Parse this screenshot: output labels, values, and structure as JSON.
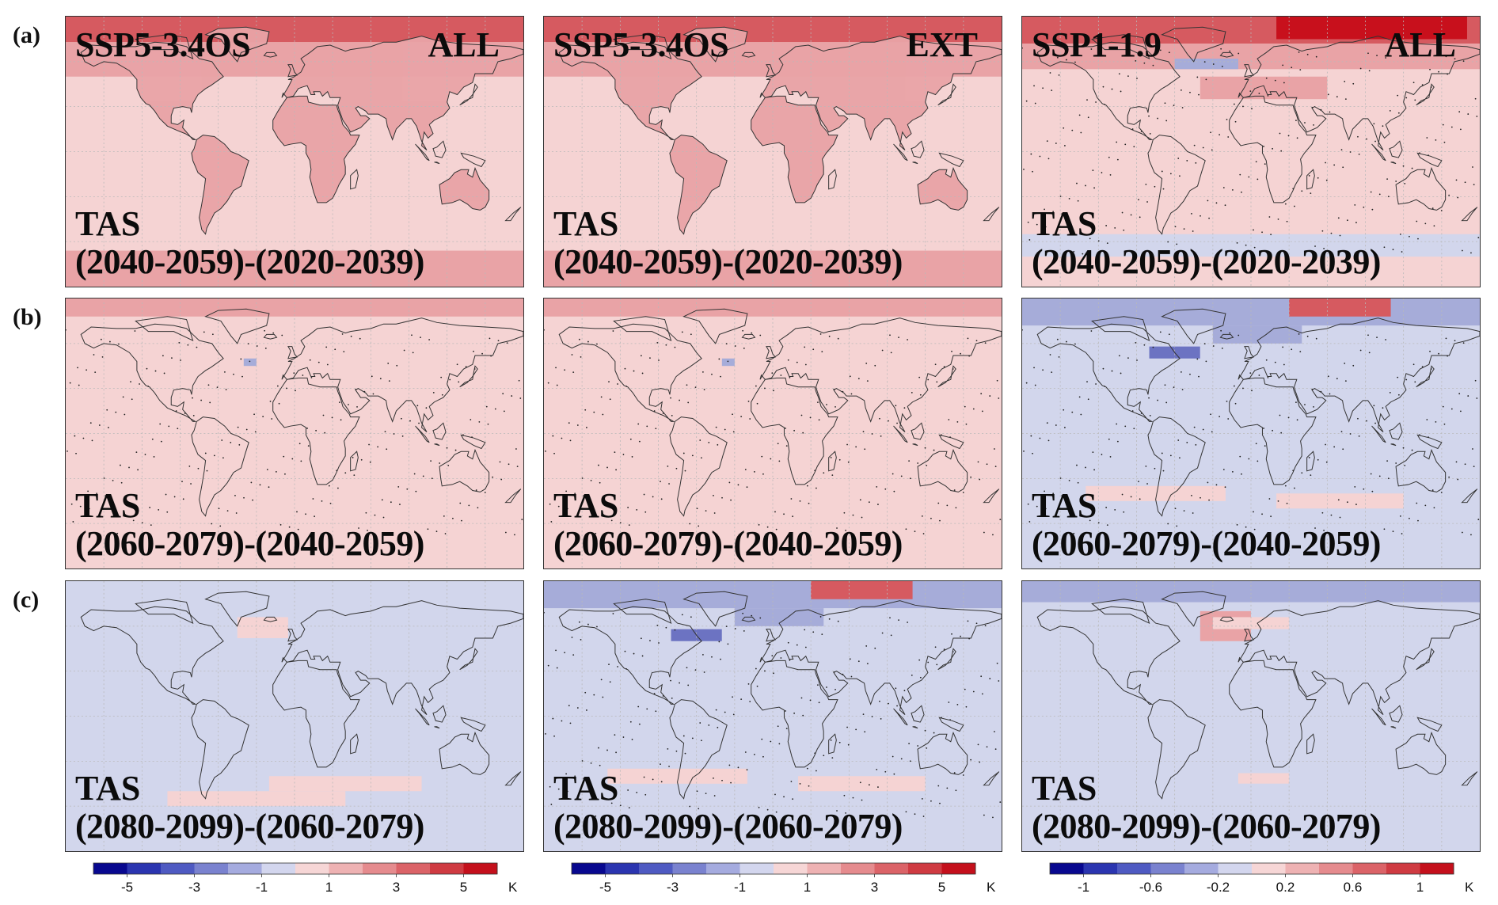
{
  "row_labels": [
    "(a)",
    "(b)",
    "(c)"
  ],
  "colors": {
    "warm_light": "#f5d3d3",
    "warm_mid": "#e9a3a6",
    "warm_strong": "#d65a60",
    "warm_max": "#c8101c",
    "cool_light": "#d2d6ec",
    "cool_mid": "#a6acd9",
    "cool_strong": "#6c73c2",
    "coast": "#333333"
  },
  "panels": [
    {
      "row": "a",
      "col": 1,
      "scenario": "SSP5-3.4OS",
      "group": "ALL",
      "variable": "TAS",
      "period": "(2040-2059)-(2020-2039)",
      "base_tone": "warm_light",
      "pattern": "warm-strong",
      "stipple": false
    },
    {
      "row": "a",
      "col": 2,
      "scenario": "SSP5-3.4OS",
      "group": "EXT",
      "variable": "TAS",
      "period": "(2040-2059)-(2020-2039)",
      "base_tone": "warm_light",
      "pattern": "warm-strong",
      "stipple": false
    },
    {
      "row": "a",
      "col": 3,
      "scenario": "SSP1-1.9",
      "group": "ALL",
      "variable": "TAS",
      "period": "(2040-2059)-(2020-2039)",
      "base_tone": "warm_light",
      "pattern": "warm-max",
      "stipple": true
    },
    {
      "row": "b",
      "col": 1,
      "scenario": "",
      "group": "",
      "variable": "TAS",
      "period": "(2060-2079)-(2040-2059)",
      "base_tone": "warm_light",
      "pattern": "warm-cap",
      "stipple": true
    },
    {
      "row": "b",
      "col": 2,
      "scenario": "",
      "group": "",
      "variable": "TAS",
      "period": "(2060-2079)-(2040-2059)",
      "base_tone": "warm_light",
      "pattern": "warm-cap",
      "stipple": true
    },
    {
      "row": "b",
      "col": 3,
      "scenario": "",
      "group": "",
      "variable": "TAS",
      "period": "(2060-2079)-(2040-2059)",
      "base_tone": "cool_light",
      "pattern": "cool-mixed",
      "stipple": true
    },
    {
      "row": "c",
      "col": 1,
      "scenario": "",
      "group": "",
      "variable": "TAS",
      "period": "(2080-2099)-(2060-2079)",
      "base_tone": "cool_light",
      "pattern": "cool-faint",
      "stipple": false
    },
    {
      "row": "c",
      "col": 2,
      "scenario": "",
      "group": "",
      "variable": "TAS",
      "period": "(2080-2099)-(2060-2079)",
      "base_tone": "cool_light",
      "pattern": "cool-mixed",
      "stipple": true
    },
    {
      "row": "c",
      "col": 3,
      "scenario": "",
      "group": "",
      "variable": "TAS",
      "period": "(2080-2099)-(2060-2079)",
      "base_tone": "cool_light",
      "pattern": "cool-atl",
      "stipple": false
    }
  ],
  "colorbars": [
    {
      "ticks": [
        "-5",
        "-3",
        "-1",
        "1",
        "3",
        "5"
      ],
      "unit": "K"
    },
    {
      "ticks": [
        "-5",
        "-3",
        "-1",
        "1",
        "3",
        "5"
      ],
      "unit": "K"
    },
    {
      "ticks": [
        "-1",
        "-0.6",
        "-0.2",
        "0.2",
        "0.6",
        "1"
      ],
      "unit": "K"
    }
  ],
  "colorbar_colors": [
    "#08088f",
    "#2b35b0",
    "#4f5ac2",
    "#7a82cf",
    "#a5abdf",
    "#d3d6ee",
    "#f6d6d6",
    "#eeb2b3",
    "#e58b8e",
    "#db6368",
    "#cf3b42",
    "#c4101c"
  ]
}
